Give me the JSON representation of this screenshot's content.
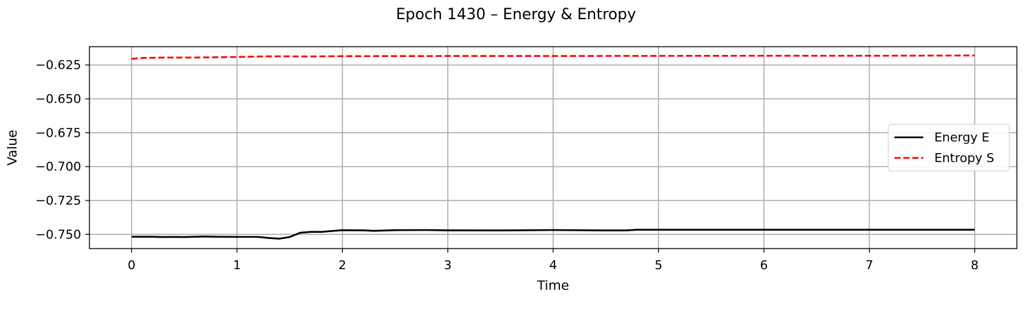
{
  "chart_data": {
    "type": "line",
    "title": "Epoch 1430 – Energy & Entropy",
    "xlabel": "Time",
    "ylabel": "Value",
    "xlim": [
      -0.4,
      8.4
    ],
    "ylim": [
      -0.7605,
      -0.6115
    ],
    "xticks": [
      0,
      1,
      2,
      3,
      4,
      5,
      6,
      7,
      8
    ],
    "xtick_labels": [
      "0",
      "1",
      "2",
      "3",
      "4",
      "5",
      "6",
      "7",
      "8"
    ],
    "yticks": [
      -0.75,
      -0.725,
      -0.7,
      -0.675,
      -0.65,
      -0.625
    ],
    "ytick_labels": [
      "−0.750",
      "−0.725",
      "−0.700",
      "−0.675",
      "−0.650",
      "−0.625"
    ],
    "grid": true,
    "legend_position": "center-right",
    "series": [
      {
        "name": "Energy E",
        "color": "#000000",
        "dash": "solid",
        "x": [
          0,
          0.2,
          0.3,
          0.4,
          0.5,
          0.6,
          0.7,
          0.8,
          1.0,
          1.2,
          1.3,
          1.4,
          1.5,
          1.6,
          1.7,
          1.8,
          2.0,
          2.2,
          2.3,
          2.5,
          2.8,
          3.0,
          3.5,
          4.0,
          4.5,
          4.7,
          4.8,
          5.0,
          6.0,
          7.0,
          8.0
        ],
        "y": [
          -0.7518,
          -0.7518,
          -0.752,
          -0.7519,
          -0.752,
          -0.7518,
          -0.7516,
          -0.7518,
          -0.7519,
          -0.7519,
          -0.7527,
          -0.7532,
          -0.752,
          -0.7488,
          -0.7482,
          -0.7482,
          -0.7469,
          -0.747,
          -0.7474,
          -0.7469,
          -0.7468,
          -0.747,
          -0.7471,
          -0.7468,
          -0.7471,
          -0.747,
          -0.7466,
          -0.7466,
          -0.7466,
          -0.7466,
          -0.7466
        ]
      },
      {
        "name": "Entropy S",
        "color": "#ff0000",
        "dash": "dashed",
        "x": [
          0,
          0.1,
          0.3,
          0.6,
          1.0,
          1.3,
          1.7,
          2.0,
          3.0,
          4.0,
          5.0,
          6.0,
          7.0,
          8.0
        ],
        "y": [
          -0.6205,
          -0.6198,
          -0.6195,
          -0.6195,
          -0.6191,
          -0.6186,
          -0.6187,
          -0.6185,
          -0.6184,
          -0.6184,
          -0.6183,
          -0.6182,
          -0.6182,
          -0.618
        ]
      }
    ]
  }
}
